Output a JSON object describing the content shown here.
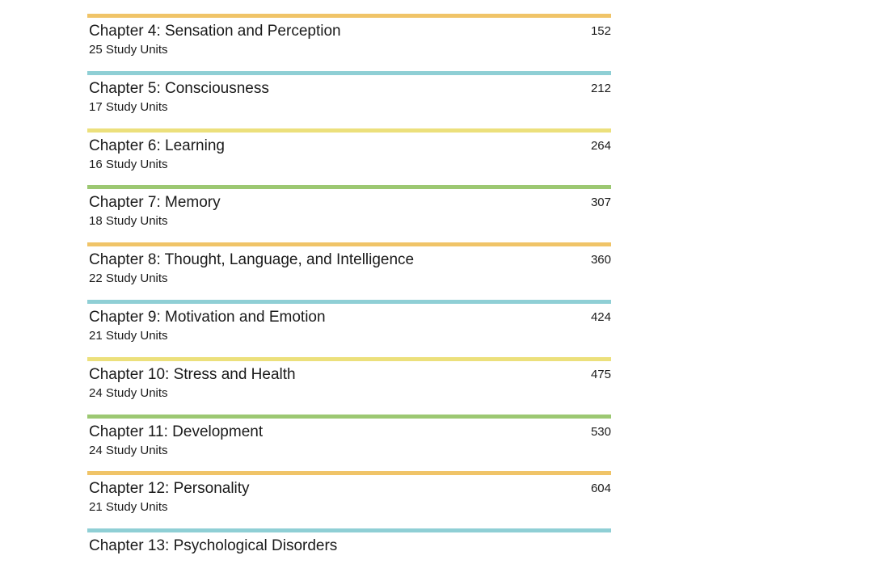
{
  "chapters": [
    {
      "title": "Chapter 4: Sensation and Perception",
      "units": "25 Study Units",
      "page": "152",
      "color": "#f0c468"
    },
    {
      "title": "Chapter 5: Consciousness",
      "units": "17 Study Units",
      "page": "212",
      "color": "#8fcfd5"
    },
    {
      "title": "Chapter 6: Learning",
      "units": "16 Study Units",
      "page": "264",
      "color": "#ece07c"
    },
    {
      "title": "Chapter 7: Memory",
      "units": "18 Study Units",
      "page": "307",
      "color": "#9cc872"
    },
    {
      "title": "Chapter 8: Thought, Language, and Intelligence",
      "units": "22 Study Units",
      "page": "360",
      "color": "#f0c468"
    },
    {
      "title": "Chapter 9: Motivation and Emotion",
      "units": "21 Study Units",
      "page": "424",
      "color": "#8fcfd5"
    },
    {
      "title": "Chapter 10: Stress and Health",
      "units": "24 Study Units",
      "page": "475",
      "color": "#ece07c"
    },
    {
      "title": "Chapter 11: Development",
      "units": "24 Study Units",
      "page": "530",
      "color": "#9cc872"
    },
    {
      "title": "Chapter 12: Personality",
      "units": "21 Study Units",
      "page": "604",
      "color": "#f0c468"
    },
    {
      "title": "Chapter 13: Psychological Disorders",
      "color": "#8fcfd5"
    }
  ]
}
